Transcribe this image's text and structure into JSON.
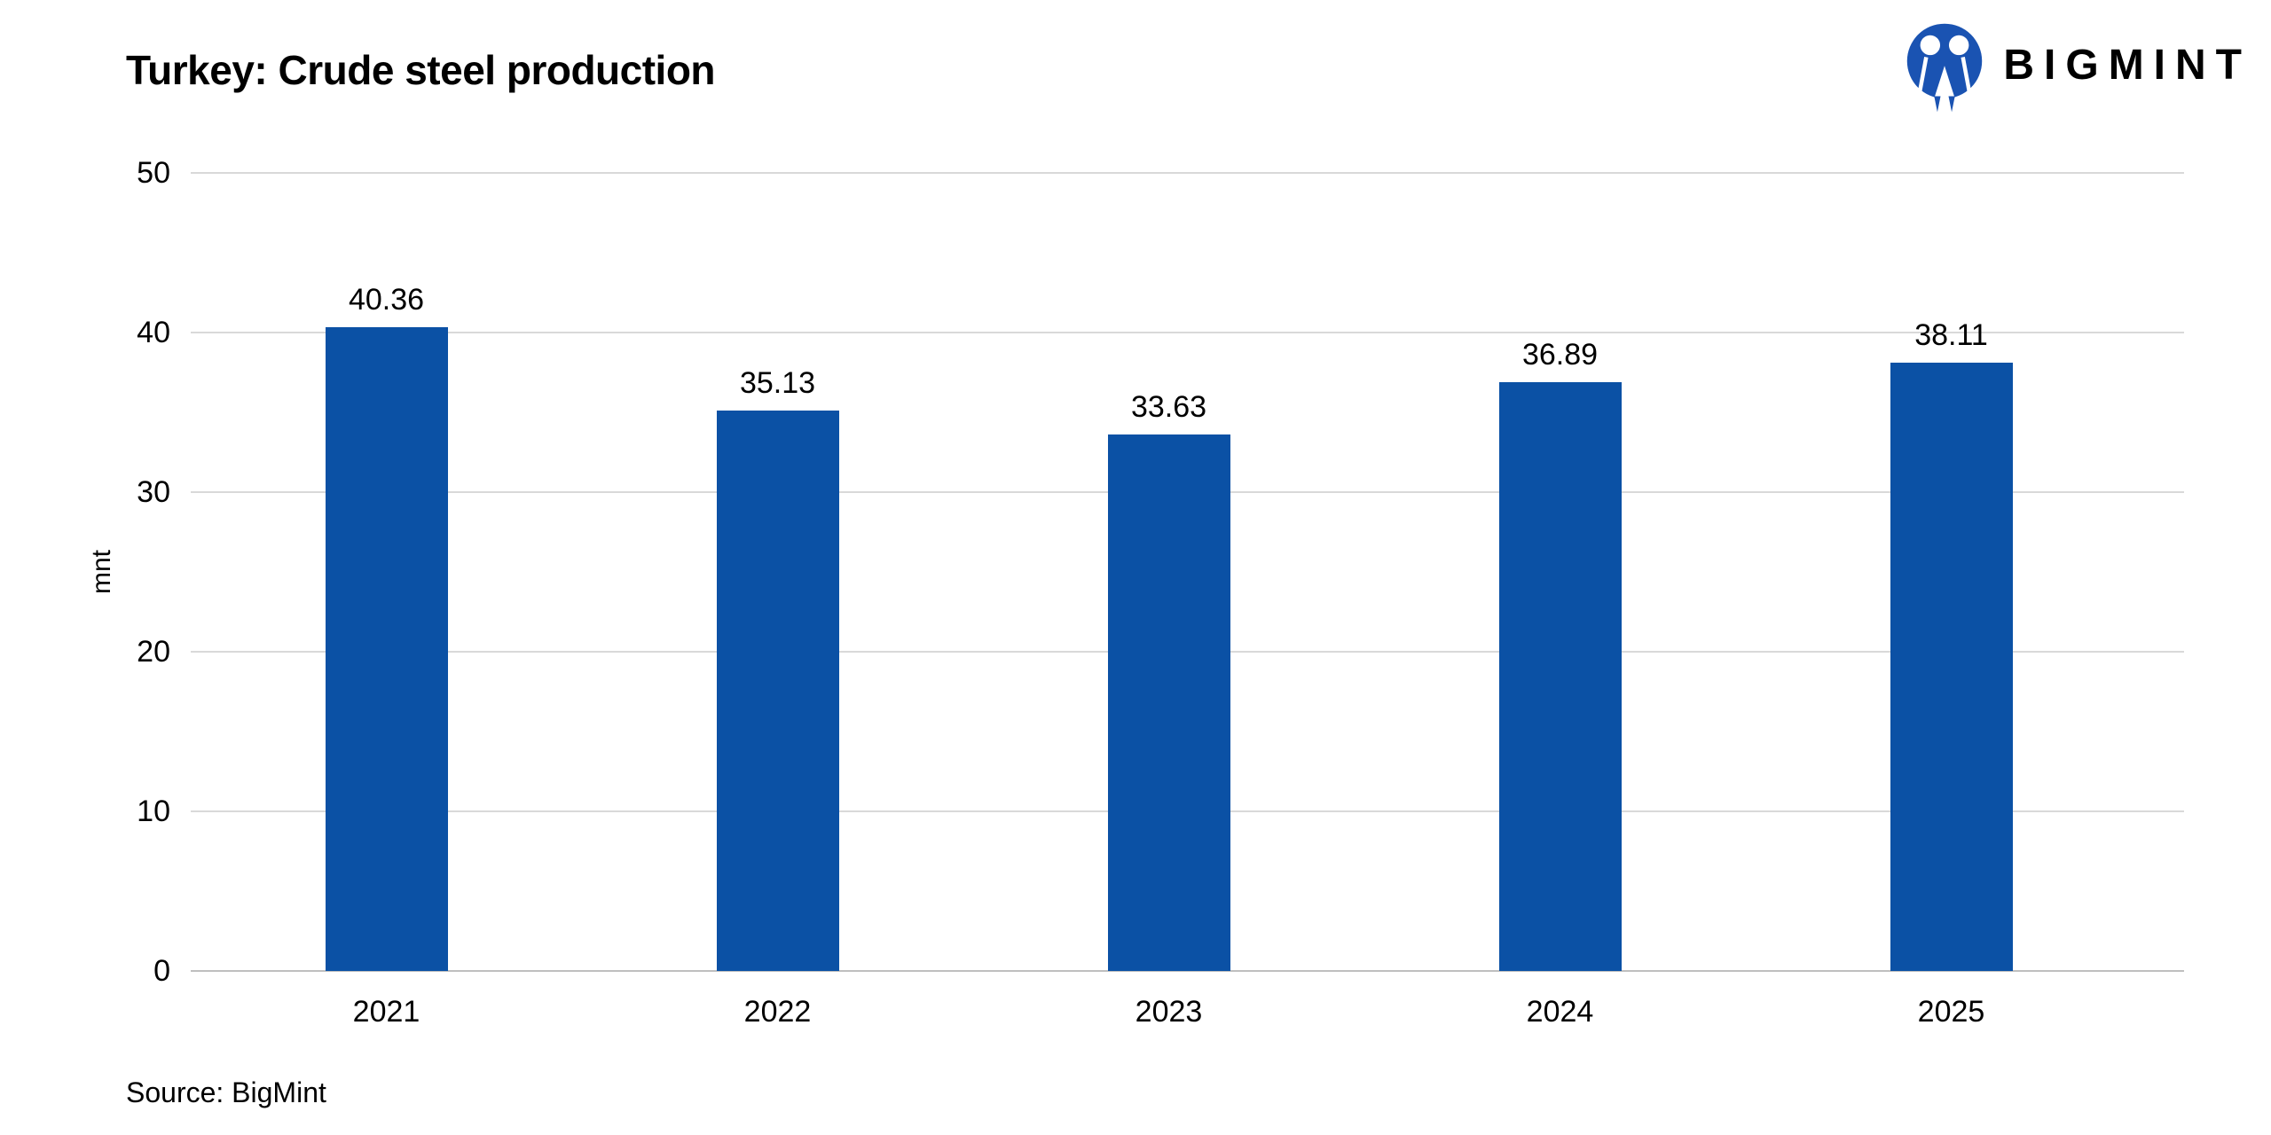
{
  "header": {
    "brand": "BIGMINT"
  },
  "footer": {
    "source": "Source: BigMint"
  },
  "colors": {
    "bar": "#0B51A5",
    "brand_blue": "#1A53B2",
    "gridline": "#D9D9D9",
    "baseline": "#BFBFBF",
    "text": "#000000",
    "background": "#FFFFFF"
  },
  "chart_data": {
    "type": "bar",
    "title": "Turkey: Crude steel production",
    "categories": [
      "2021",
      "2022",
      "2023",
      "2024",
      "2025"
    ],
    "values": [
      40.36,
      35.13,
      33.63,
      36.89,
      38.11
    ],
    "data_labels": [
      "40.36",
      "35.13",
      "33.63",
      "36.89",
      "38.11"
    ],
    "xlabel": "",
    "ylabel": "mnt",
    "ylim": [
      0,
      50
    ],
    "yticks": [
      0,
      10,
      20,
      30,
      40,
      50
    ],
    "grid": "horizontal",
    "legend_position": "none",
    "bar_color": "#0B51A5"
  }
}
